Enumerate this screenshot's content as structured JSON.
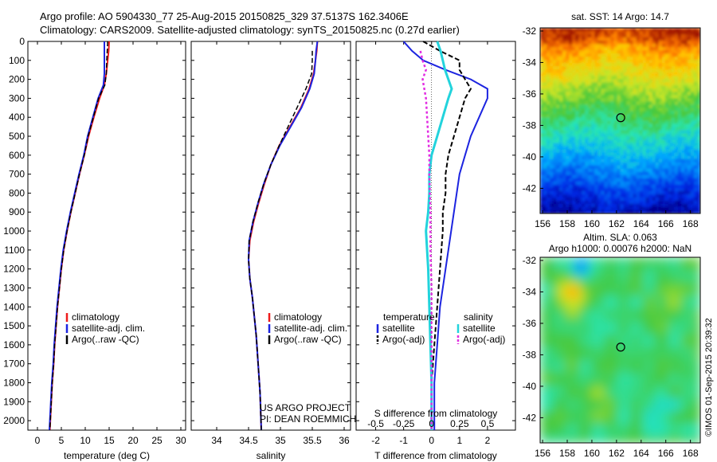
{
  "header": {
    "line1": "Argo profile: AO 5904330_77 25-Aug-2015 20150825_329 37.5137S 162.3406E",
    "line2": "Climatology: CARS2009. Satellite-adjusted climatology: synTS_20150825.nc (0.27d earlier)"
  },
  "credit": "©IMOS 01-Sep-2015 20:39:32",
  "depth_ticks": [
    "0",
    "100",
    "200",
    "300",
    "400",
    "500",
    "600",
    "700",
    "800",
    "900",
    "1000",
    "1100",
    "1200",
    "1300",
    "1400",
    "1500",
    "1600",
    "1700",
    "1800",
    "1900",
    "2000"
  ],
  "colors": {
    "climatology": "#ee1c1c",
    "satellite_adj": "#1c24e0",
    "argo": "#000000",
    "salinity_sat": "#22d3dc",
    "salinity_argo": "#e22ee2"
  },
  "chart_data": [
    {
      "type": "line",
      "panel": "temperature",
      "xlabel": "temperature (deg C)",
      "xlim": [
        -2,
        31
      ],
      "ylim": [
        2050,
        0
      ],
      "x_ticks": [
        "0",
        "5",
        "10",
        "15",
        "20",
        "25",
        "30"
      ],
      "legend": [
        "climatology",
        "satellite-adj. clim.",
        "Argo(..raw -QC)"
      ],
      "series": [
        {
          "name": "climatology",
          "points": [
            [
              15.0,
              0
            ],
            [
              14.9,
              50
            ],
            [
              14.7,
              100
            ],
            [
              14.4,
              170
            ],
            [
              14.0,
              230
            ],
            [
              13.0,
              300
            ],
            [
              11.8,
              400
            ],
            [
              10.7,
              500
            ],
            [
              9.8,
              600
            ],
            [
              8.8,
              700
            ],
            [
              7.9,
              800
            ],
            [
              7.0,
              900
            ],
            [
              6.2,
              1000
            ],
            [
              5.5,
              1100
            ],
            [
              5.0,
              1200
            ],
            [
              4.6,
              1300
            ],
            [
              4.2,
              1400
            ],
            [
              3.9,
              1500
            ],
            [
              3.6,
              1600
            ],
            [
              3.4,
              1700
            ],
            [
              3.1,
              1800
            ],
            [
              2.9,
              1900
            ],
            [
              2.7,
              2000
            ],
            [
              2.6,
              2050
            ]
          ]
        },
        {
          "name": "satellite-adj. clim.",
          "points": [
            [
              14.0,
              0
            ],
            [
              14.0,
              50
            ],
            [
              14.0,
              100
            ],
            [
              14.0,
              170
            ],
            [
              13.8,
              230
            ],
            [
              12.7,
              300
            ],
            [
              11.6,
              400
            ],
            [
              10.5,
              500
            ],
            [
              9.7,
              600
            ],
            [
              8.7,
              700
            ],
            [
              7.8,
              800
            ],
            [
              6.9,
              900
            ],
            [
              6.1,
              1000
            ],
            [
              5.4,
              1100
            ],
            [
              4.9,
              1200
            ],
            [
              4.5,
              1300
            ],
            [
              4.1,
              1400
            ],
            [
              3.8,
              1500
            ],
            [
              3.5,
              1600
            ],
            [
              3.3,
              1700
            ],
            [
              3.0,
              1800
            ],
            [
              2.8,
              1900
            ],
            [
              2.6,
              2000
            ],
            [
              2.5,
              2050
            ]
          ]
        },
        {
          "name": "Argo(..raw -QC)",
          "points": [
            [
              14.7,
              0
            ],
            [
              14.6,
              50
            ],
            [
              14.5,
              100
            ],
            [
              14.4,
              170
            ],
            [
              14.1,
              230
            ],
            [
              12.8,
              300
            ],
            [
              11.7,
              400
            ],
            [
              10.6,
              500
            ],
            [
              9.8,
              600
            ],
            [
              8.8,
              700
            ],
            [
              7.9,
              800
            ],
            [
              7.0,
              900
            ],
            [
              6.2,
              1000
            ],
            [
              5.5,
              1100
            ],
            [
              5.0,
              1200
            ],
            [
              4.6,
              1300
            ],
            [
              4.2,
              1400
            ],
            [
              3.9,
              1500
            ],
            [
              3.6,
              1600
            ],
            [
              3.4,
              1700
            ],
            [
              3.1,
              1800
            ],
            [
              2.9,
              1900
            ],
            [
              2.7,
              2000
            ],
            [
              2.6,
              2050
            ]
          ]
        }
      ]
    },
    {
      "type": "line",
      "panel": "salinity",
      "xlabel": "salinity",
      "xlim": [
        33.6,
        36.1
      ],
      "ylim": [
        2050,
        0
      ],
      "x_ticks": [
        "34",
        "34.5",
        "35",
        "35.5",
        "36"
      ],
      "legend": [
        "climatology",
        "satellite-adj. clim.",
        "Argo(..raw -QC)"
      ],
      "annotations": [
        "US ARGO PROJECT",
        "PI: DEAN ROEMMICH"
      ],
      "series": [
        {
          "name": "climatology",
          "points": [
            [
              35.58,
              0
            ],
            [
              35.57,
              50
            ],
            [
              35.55,
              100
            ],
            [
              35.52,
              170
            ],
            [
              35.45,
              250
            ],
            [
              35.32,
              350
            ],
            [
              35.15,
              450
            ],
            [
              34.98,
              550
            ],
            [
              34.85,
              650
            ],
            [
              34.75,
              750
            ],
            [
              34.66,
              850
            ],
            [
              34.58,
              950
            ],
            [
              34.52,
              1050
            ],
            [
              34.5,
              1150
            ],
            [
              34.52,
              1250
            ],
            [
              34.56,
              1350
            ],
            [
              34.59,
              1450
            ],
            [
              34.62,
              1550
            ],
            [
              34.64,
              1650
            ],
            [
              34.66,
              1750
            ],
            [
              34.68,
              1850
            ],
            [
              34.69,
              1950
            ],
            [
              34.7,
              2050
            ]
          ]
        },
        {
          "name": "satellite-adj. clim.",
          "points": [
            [
              35.58,
              0
            ],
            [
              35.56,
              50
            ],
            [
              35.55,
              100
            ],
            [
              35.53,
              170
            ],
            [
              35.46,
              250
            ],
            [
              35.33,
              350
            ],
            [
              35.16,
              450
            ],
            [
              34.99,
              550
            ],
            [
              34.85,
              650
            ],
            [
              34.74,
              750
            ],
            [
              34.65,
              850
            ],
            [
              34.57,
              950
            ],
            [
              34.51,
              1050
            ],
            [
              34.5,
              1150
            ],
            [
              34.52,
              1250
            ],
            [
              34.56,
              1350
            ],
            [
              34.59,
              1450
            ],
            [
              34.62,
              1550
            ],
            [
              34.64,
              1650
            ],
            [
              34.66,
              1750
            ],
            [
              34.68,
              1850
            ],
            [
              34.69,
              1950
            ],
            [
              34.7,
              2050
            ]
          ]
        },
        {
          "name": "Argo(..raw -QC)",
          "points": [
            [
              35.5,
              50
            ],
            [
              35.5,
              100
            ],
            [
              35.49,
              170
            ],
            [
              35.4,
              250
            ],
            [
              35.26,
              350
            ],
            [
              35.12,
              450
            ],
            [
              34.98,
              550
            ],
            [
              34.85,
              650
            ],
            [
              34.74,
              750
            ],
            [
              34.65,
              850
            ],
            [
              34.57,
              950
            ],
            [
              34.51,
              1050
            ],
            [
              34.5,
              1150
            ],
            [
              34.52,
              1250
            ],
            [
              34.56,
              1350
            ],
            [
              34.59,
              1450
            ],
            [
              34.62,
              1550
            ],
            [
              34.64,
              1650
            ],
            [
              34.66,
              1750
            ],
            [
              34.68,
              1850
            ],
            [
              34.69,
              1950
            ],
            [
              34.7,
              2050
            ]
          ]
        }
      ]
    },
    {
      "type": "line",
      "panel": "difference",
      "xlabel": "T difference from climatology",
      "xlabel_top": "S difference from climatology",
      "xlim": [
        -2.7,
        3
      ],
      "ylim": [
        2050,
        0
      ],
      "x_ticks": [
        "-2",
        "-1",
        "0",
        "1",
        "2"
      ],
      "x_ticks_top": [
        "-0.5",
        "-0.25",
        "0",
        "0.25",
        "0.5"
      ],
      "legend_groups": [
        {
          "title": "temperature",
          "entries": [
            "satellite",
            "Argo(-adj)"
          ]
        },
        {
          "title": "salinity",
          "entries": [
            "satellite",
            "Argo(-adj)"
          ]
        }
      ],
      "series": [
        {
          "name": "satellite",
          "group": "temperature",
          "points": [
            [
              -1.0,
              0
            ],
            [
              -0.7,
              50
            ],
            [
              -0.3,
              100
            ],
            [
              0.5,
              150
            ],
            [
              1.4,
              200
            ],
            [
              2.0,
              250
            ],
            [
              2.0,
              300
            ],
            [
              1.7,
              400
            ],
            [
              1.4,
              500
            ],
            [
              1.2,
              600
            ],
            [
              1.0,
              700
            ],
            [
              0.9,
              800
            ],
            [
              0.8,
              900
            ],
            [
              0.7,
              1000
            ],
            [
              0.6,
              1100
            ],
            [
              0.5,
              1200
            ],
            [
              0.4,
              1300
            ],
            [
              0.3,
              1400
            ],
            [
              0.2,
              1600
            ],
            [
              0.1,
              1800
            ],
            [
              0.1,
              2050
            ]
          ]
        },
        {
          "name": "Argo(-adj)",
          "group": "temperature",
          "points": [
            [
              -0.3,
              0
            ],
            [
              0.3,
              50
            ],
            [
              1.0,
              100
            ],
            [
              1.0,
              150
            ],
            [
              1.2,
              200
            ],
            [
              1.4,
              250
            ],
            [
              1.2,
              300
            ],
            [
              1.0,
              400
            ],
            [
              0.8,
              500
            ],
            [
              0.6,
              600
            ],
            [
              0.5,
              700
            ],
            [
              0.5,
              800
            ],
            [
              0.4,
              900
            ],
            [
              0.4,
              1000
            ],
            [
              0.3,
              1200
            ],
            [
              0.2,
              1400
            ],
            [
              0.1,
              1600
            ],
            [
              0.0,
              1800
            ],
            [
              0.0,
              2050
            ]
          ]
        },
        {
          "name": "satellite",
          "group": "salinity",
          "points": [
            [
              0.05,
              0
            ],
            [
              0.08,
              50
            ],
            [
              0.1,
              100
            ],
            [
              0.12,
              150
            ],
            [
              0.15,
              200
            ],
            [
              0.18,
              250
            ],
            [
              0.15,
              300
            ],
            [
              0.1,
              400
            ],
            [
              0.05,
              500
            ],
            [
              0.0,
              600
            ],
            [
              -0.02,
              700
            ],
            [
              -0.02,
              800
            ],
            [
              -0.03,
              900
            ],
            [
              -0.05,
              1000
            ],
            [
              -0.04,
              1100
            ],
            [
              -0.03,
              1200
            ],
            [
              -0.02,
              1400
            ],
            [
              -0.01,
              1600
            ],
            [
              0.0,
              1800
            ],
            [
              0.0,
              2050
            ]
          ]
        },
        {
          "name": "Argo(-adj)",
          "group": "salinity",
          "points": [
            [
              -0.1,
              50
            ],
            [
              -0.08,
              100
            ],
            [
              -0.05,
              150
            ],
            [
              -0.08,
              200
            ],
            [
              -0.05,
              300
            ],
            [
              -0.04,
              400
            ],
            [
              -0.03,
              500
            ],
            [
              -0.02,
              600
            ],
            [
              -0.02,
              700
            ],
            [
              -0.01,
              900
            ],
            [
              -0.01,
              1100
            ],
            [
              0.0,
              1300
            ],
            [
              0.0,
              1500
            ],
            [
              0.0,
              1800
            ],
            [
              0.0,
              2050
            ]
          ]
        }
      ]
    },
    {
      "type": "heatmap",
      "panel": "sst_map",
      "title": "sat. SST: 14 Argo: 14.7",
      "x_ticks": [
        "156",
        "158",
        "160",
        "162",
        "164",
        "166",
        "168"
      ],
      "y_ticks": [
        "-32",
        "-34",
        "-36",
        "-38",
        "-40",
        "-42"
      ],
      "xlim": [
        155.8,
        168.8
      ],
      "ylim": [
        -43.6,
        -31.8
      ],
      "marker": {
        "lon": 162.34,
        "lat": -37.51
      }
    },
    {
      "type": "heatmap",
      "panel": "sla_map",
      "title_lines": [
        "Altim. SLA: 0.063",
        "Argo h1000: 0.00076 h2000: NaN"
      ],
      "x_ticks": [
        "156",
        "158",
        "160",
        "162",
        "164",
        "166",
        "168"
      ],
      "y_ticks": [
        "-32",
        "-34",
        "-36",
        "-38",
        "-40",
        "-42"
      ],
      "xlim": [
        155.8,
        168.8
      ],
      "ylim": [
        -43.6,
        -31.8
      ],
      "marker": {
        "lon": 162.34,
        "lat": -37.51
      }
    }
  ]
}
